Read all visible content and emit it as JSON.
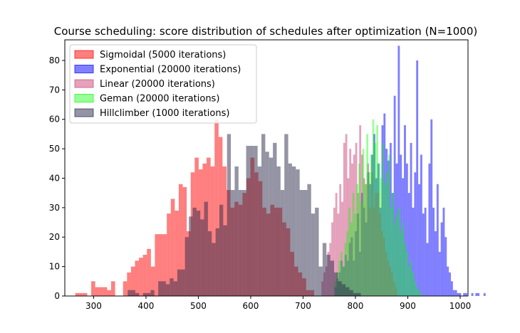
{
  "chart_data": {
    "type": "bar",
    "title": "Course scheduling: score distribution of schedules after optimization (N=1000)",
    "xlabel": "",
    "ylabel": "",
    "xlim": [
      245,
      1015
    ],
    "ylim": [
      0,
      87
    ],
    "xticks": [
      "300",
      "400",
      "500",
      "600",
      "700",
      "800",
      "900",
      "1000"
    ],
    "yticks": [
      "0",
      "10",
      "20",
      "30",
      "40",
      "50",
      "60",
      "70",
      "80"
    ],
    "grid": false,
    "legend_position": "top-left",
    "series": [
      {
        "name": "Sigmoidal (5000 iterations)",
        "color": "#ff0000",
        "alpha": 0.5,
        "bin_width": 7.6,
        "x_start": 265,
        "values": [
          1,
          1,
          1,
          0,
          5,
          3,
          3,
          3,
          2,
          5,
          0,
          0,
          5,
          8,
          10,
          12,
          13,
          14,
          16,
          10,
          21,
          21,
          21,
          28,
          33,
          29,
          38,
          37,
          22,
          42,
          47,
          43,
          45,
          47,
          44,
          60,
          54,
          44,
          36,
          30,
          32,
          31,
          35,
          40,
          47,
          42,
          39,
          30,
          28,
          31,
          30,
          30,
          25,
          23,
          15,
          10,
          8,
          6,
          2,
          2
        ]
      },
      {
        "name": "Exponential (20000 iterations)",
        "color": "#0000ff",
        "alpha": 0.5,
        "bin_width": 3.9,
        "x_start": 760,
        "values": [
          3,
          6,
          8,
          12,
          10,
          14,
          12,
          18,
          20,
          12,
          22,
          28,
          15,
          35,
          30,
          25,
          42,
          38,
          48,
          55,
          40,
          45,
          30,
          58,
          62,
          50,
          46,
          52,
          35,
          68,
          45,
          85,
          48,
          40,
          58,
          45,
          35,
          52,
          30,
          42,
          80,
          38,
          48,
          28,
          30,
          18,
          45,
          60,
          30,
          22,
          38,
          15,
          25,
          30,
          20,
          10,
          8,
          5,
          2,
          2,
          1,
          1,
          0,
          1,
          1,
          0,
          0,
          1,
          0,
          1,
          1,
          0,
          0,
          1
        ]
      },
      {
        "name": "Linear (20000 iterations)",
        "color": "#cc4477",
        "alpha": 0.5,
        "bin_width": 3.8,
        "x_start": 735,
        "values": [
          5,
          8,
          10,
          15,
          18,
          25,
          30,
          35,
          28,
          38,
          32,
          52,
          55,
          40,
          50,
          45,
          48,
          52,
          35,
          58,
          48,
          40,
          38,
          45,
          30,
          42,
          30,
          35,
          35,
          28,
          22,
          20,
          15,
          12,
          10,
          8,
          5,
          3
        ]
      },
      {
        "name": "Geman (20000 iterations)",
        "color": "#00ff00",
        "alpha": 0.4,
        "bin_width": 3.8,
        "x_start": 760,
        "values": [
          5,
          8,
          12,
          15,
          10,
          18,
          22,
          30,
          25,
          35,
          28,
          38,
          45,
          32,
          50,
          38,
          55,
          42,
          48,
          60,
          52,
          58,
          45,
          40,
          52,
          38,
          42,
          48,
          30,
          35,
          25,
          28,
          30,
          22,
          25,
          18,
          15,
          10,
          12,
          8,
          5,
          3,
          2,
          1
        ]
      },
      {
        "name": "Hillclimber (1000 iterations)",
        "color": "#2a2a4a",
        "alpha": 0.5,
        "bin_width": 7.3,
        "x_start": 365,
        "values": [
          2,
          2,
          1,
          0,
          1,
          1,
          2,
          0,
          5,
          5,
          4,
          6,
          5,
          9,
          9,
          20,
          27,
          30,
          29,
          26,
          32,
          22,
          18,
          23,
          31,
          24,
          55,
          36,
          44,
          36,
          36,
          51,
          51,
          51,
          44,
          55,
          49,
          47,
          52,
          44,
          36,
          55,
          45,
          44,
          43,
          36,
          36,
          38,
          28,
          30,
          10,
          18,
          14,
          12,
          8,
          5,
          4,
          3,
          2,
          1,
          1
        ]
      }
    ]
  }
}
